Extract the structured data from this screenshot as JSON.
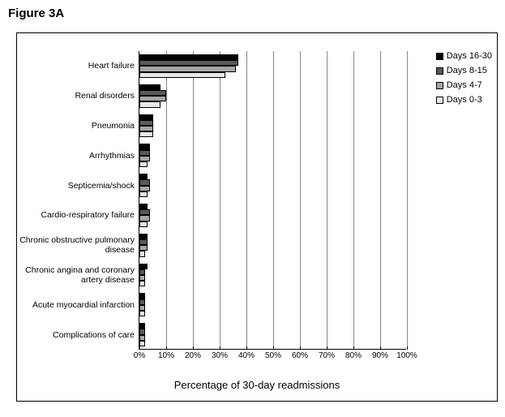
{
  "figure_title": "Figure 3A",
  "chart": {
    "type": "bar-horizontal-grouped",
    "x_title": "Percentage of 30-day readmissions",
    "xlim": [
      0,
      100
    ],
    "xtick_step": 10,
    "xtick_suffix": "%",
    "plot_bg": "#ffffff",
    "grid_color": "#888888",
    "border_color": "#000000",
    "series": [
      {
        "label": "Days 16-30",
        "color": "#000000"
      },
      {
        "label": "Days 8-15",
        "color": "#595959"
      },
      {
        "label": "Days 4-7",
        "color": "#a6a6a6"
      },
      {
        "label": "Days 0-3",
        "color": "#e8e8e8"
      }
    ],
    "categories": [
      {
        "label": "Heart failure",
        "values": [
          37,
          37,
          36,
          32
        ]
      },
      {
        "label": "Renal disorders",
        "values": [
          8,
          10,
          10,
          8
        ]
      },
      {
        "label": "Pneumonia",
        "values": [
          5,
          5,
          5,
          5
        ]
      },
      {
        "label": "Arrhythmias",
        "values": [
          4,
          4,
          4,
          3
        ]
      },
      {
        "label": "Septicemia/shock",
        "values": [
          3,
          4,
          4,
          3
        ]
      },
      {
        "label": "Cardio-respiratory failure",
        "values": [
          3,
          4,
          4,
          3
        ]
      },
      {
        "label": "Chronic obstructive pulmonary disease",
        "values": [
          3,
          3,
          3,
          2
        ]
      },
      {
        "label": "Chronic angina and coronary artery disease",
        "values": [
          3,
          2,
          2,
          2
        ]
      },
      {
        "label": "Acute myocardial infarction",
        "values": [
          2,
          2,
          2,
          2
        ]
      },
      {
        "label": "Complications of care",
        "values": [
          2,
          2,
          2,
          2
        ]
      }
    ],
    "label_fontsize": 10.5,
    "tick_fontsize": 10,
    "x_title_fontsize": 13
  }
}
